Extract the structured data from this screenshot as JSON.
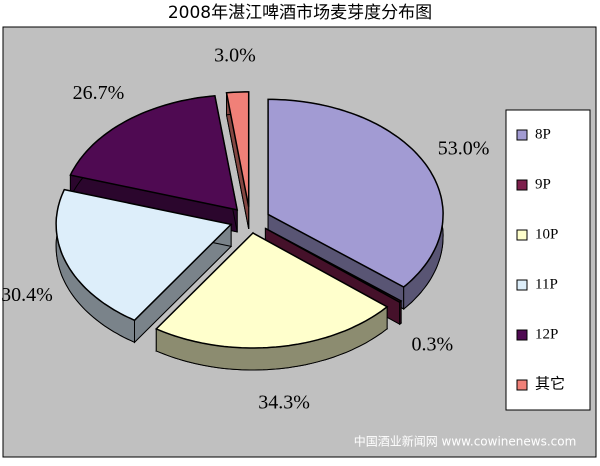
{
  "chart_data": {
    "type": "pie",
    "title": "2008年湛江啤酒市场麦芽度分布图",
    "categories": [
      "8P",
      "9P",
      "10P",
      "11P",
      "12P",
      "其它"
    ],
    "values": [
      53.0,
      0.3,
      34.3,
      30.4,
      26.7,
      3.0
    ],
    "value_labels": [
      "53.0%",
      "0.3%",
      "34.3%",
      "30.4%",
      "26.7%",
      "3.0%"
    ],
    "colors": [
      "#a29bd3",
      "#7d1f4c",
      "#ffffcc",
      "#ddeefa",
      "#4f0a52",
      "#f08078"
    ],
    "legend": "right",
    "watermark": "中国酒业新闻网 www.cowinenews.com"
  }
}
